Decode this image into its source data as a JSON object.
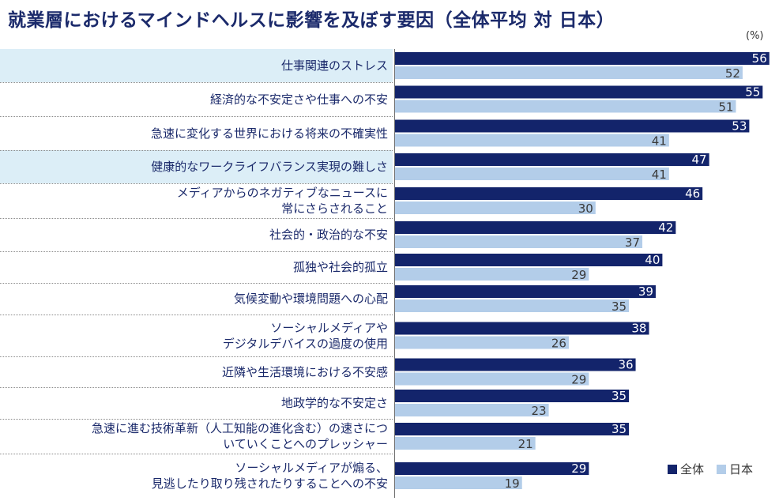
{
  "title": "就業層におけるマインドヘルスに影響を及ぼす要因（全体平均 対 日本）",
  "unit": "(%)",
  "colors": {
    "all": "#13246b",
    "japan": "#b3cde9",
    "highlight": "#dceef7",
    "label": "#1b2a6b"
  },
  "legend": {
    "all_label": "全体",
    "japan_label": "日本"
  },
  "chart_data": {
    "type": "bar",
    "orientation": "horizontal",
    "title": "就業層におけるマインドヘルスに影響を及ぼす要因（全体平均 対 日本）",
    "unit": "%",
    "legend_position": "bottom-right",
    "xlim": [
      0,
      56
    ],
    "categories": [
      {
        "label": "仕事関連のストレス",
        "highlight": true
      },
      {
        "label": "経済的な不安定さや仕事への不安",
        "highlight": false
      },
      {
        "label": "急速に変化する世界における将来の不確実性",
        "highlight": false
      },
      {
        "label": "健康的なワークライフバランス実現の難しさ",
        "highlight": true
      },
      {
        "label": "メディアからのネガティブなニュースに\n常にさらされること",
        "highlight": false
      },
      {
        "label": "社会的・政治的な不安",
        "highlight": false
      },
      {
        "label": "孤独や社会的孤立",
        "highlight": false
      },
      {
        "label": "気候変動や環境問題への心配",
        "highlight": false
      },
      {
        "label": "ソーシャルメディアや\nデジタルデバイスの過度の使用",
        "highlight": false
      },
      {
        "label": "近隣や生活環境における不安感",
        "highlight": false
      },
      {
        "label": "地政学的な不安定さ",
        "highlight": false
      },
      {
        "label": "急速に進む技術革新（人工知能の進化含む）の速さにつ\nいていくことへのプレッシャー",
        "highlight": false
      },
      {
        "label": "ソーシャルメディアが煽る、\n見逃したり取り残されたりすることへの不安",
        "highlight": false
      }
    ],
    "series": [
      {
        "name": "全体",
        "values": [
          56,
          55,
          53,
          47,
          46,
          42,
          40,
          39,
          38,
          36,
          35,
          35,
          29
        ]
      },
      {
        "name": "日本",
        "values": [
          52,
          51,
          41,
          41,
          30,
          37,
          29,
          35,
          26,
          29,
          23,
          21,
          19
        ]
      }
    ]
  }
}
